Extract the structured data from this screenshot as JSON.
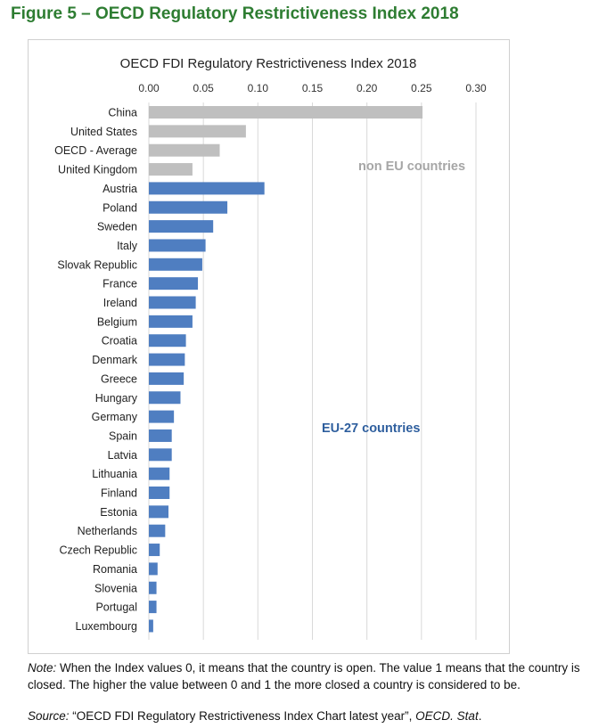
{
  "figure_title": "Figure 5 – OECD Regulatory Restrictiveness Index 2018",
  "note": {
    "label": "Note:",
    "text": " When the Index values 0, it means that the country is open. The value 1 means that the country is closed. The higher the value between 0 and 1 the more closed a country is considered to be."
  },
  "source": {
    "label": "Source:",
    "text": " “OECD FDI Regulatory Restrictiveness Index Chart latest year”, ",
    "publisher": "OECD. Stat",
    "end": "."
  },
  "colors": {
    "non_eu": "#bfbfbf",
    "eu": "#4f7ec1",
    "non_eu_label": "#a6a6a6",
    "eu_label": "#2f5f9e",
    "grid": "#d9d9d9"
  },
  "chart_data": {
    "type": "bar",
    "orientation": "horizontal",
    "title": "OECD FDI Regulatory Restrictiveness Index 2018",
    "xlim": [
      0,
      0.3
    ],
    "xticks": [
      "0.00",
      "0.05",
      "0.10",
      "0.15",
      "0.20",
      "0.25",
      "0.30"
    ],
    "xtick_values": [
      0,
      0.05,
      0.1,
      0.15,
      0.2,
      0.25,
      0.3
    ],
    "grid": true,
    "annotations": {
      "non_eu": "non EU countries",
      "eu": "EU-27 countries"
    },
    "categories": [
      "China",
      "United States",
      "OECD - Average",
      "United Kingdom",
      "Austria",
      "Poland",
      "Sweden",
      "Italy",
      "Slovak Republic",
      "France",
      "Ireland",
      "Belgium",
      "Croatia",
      "Denmark",
      "Greece",
      "Hungary",
      "Germany",
      "Spain",
      "Latvia",
      "Lithuania",
      "Finland",
      "Estonia",
      "Netherlands",
      "Czech Republic",
      "Romania",
      "Slovenia",
      "Portugal",
      "Luxembourg"
    ],
    "values": [
      0.251,
      0.089,
      0.065,
      0.04,
      0.106,
      0.072,
      0.059,
      0.052,
      0.049,
      0.045,
      0.043,
      0.04,
      0.034,
      0.033,
      0.032,
      0.029,
      0.023,
      0.021,
      0.021,
      0.019,
      0.019,
      0.018,
      0.015,
      0.01,
      0.008,
      0.007,
      0.007,
      0.004
    ],
    "group": [
      "non_eu",
      "non_eu",
      "non_eu",
      "non_eu",
      "eu",
      "eu",
      "eu",
      "eu",
      "eu",
      "eu",
      "eu",
      "eu",
      "eu",
      "eu",
      "eu",
      "eu",
      "eu",
      "eu",
      "eu",
      "eu",
      "eu",
      "eu",
      "eu",
      "eu",
      "eu",
      "eu",
      "eu",
      "eu"
    ]
  }
}
